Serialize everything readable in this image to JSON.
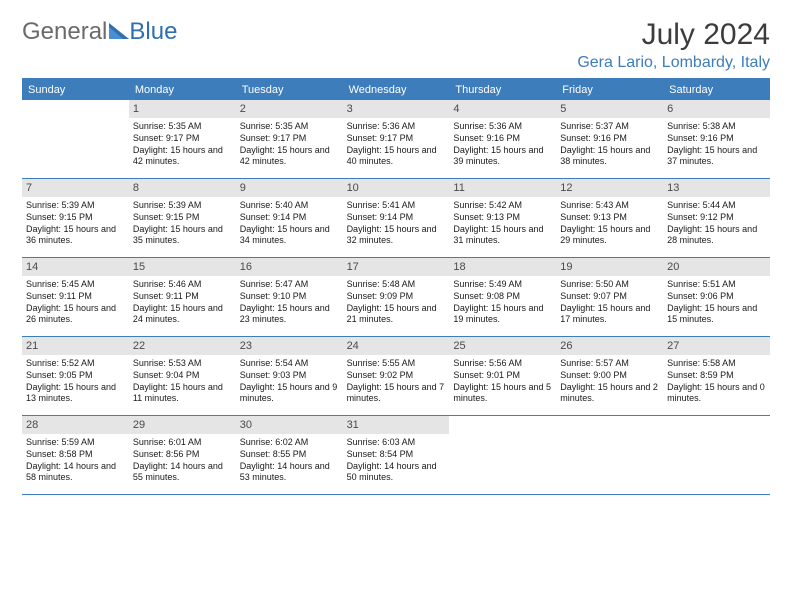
{
  "logo": {
    "text_part1": "General",
    "text_part2": "Blue"
  },
  "title": "July 2024",
  "location": "Gera Lario, Lombardy, Italy",
  "colors": {
    "accent": "#3d7dbb",
    "daynum_bg": "#e5e5e5",
    "text": "#1a1a1a",
    "logo_gray": "#6b6b6b"
  },
  "weekdays": [
    "Sunday",
    "Monday",
    "Tuesday",
    "Wednesday",
    "Thursday",
    "Friday",
    "Saturday"
  ],
  "weeks": [
    [
      {
        "day": "",
        "sunrise": "",
        "sunset": "",
        "daylight": ""
      },
      {
        "day": "1",
        "sunrise": "Sunrise: 5:35 AM",
        "sunset": "Sunset: 9:17 PM",
        "daylight": "Daylight: 15 hours and 42 minutes."
      },
      {
        "day": "2",
        "sunrise": "Sunrise: 5:35 AM",
        "sunset": "Sunset: 9:17 PM",
        "daylight": "Daylight: 15 hours and 42 minutes."
      },
      {
        "day": "3",
        "sunrise": "Sunrise: 5:36 AM",
        "sunset": "Sunset: 9:17 PM",
        "daylight": "Daylight: 15 hours and 40 minutes."
      },
      {
        "day": "4",
        "sunrise": "Sunrise: 5:36 AM",
        "sunset": "Sunset: 9:16 PM",
        "daylight": "Daylight: 15 hours and 39 minutes."
      },
      {
        "day": "5",
        "sunrise": "Sunrise: 5:37 AM",
        "sunset": "Sunset: 9:16 PM",
        "daylight": "Daylight: 15 hours and 38 minutes."
      },
      {
        "day": "6",
        "sunrise": "Sunrise: 5:38 AM",
        "sunset": "Sunset: 9:16 PM",
        "daylight": "Daylight: 15 hours and 37 minutes."
      }
    ],
    [
      {
        "day": "7",
        "sunrise": "Sunrise: 5:39 AM",
        "sunset": "Sunset: 9:15 PM",
        "daylight": "Daylight: 15 hours and 36 minutes."
      },
      {
        "day": "8",
        "sunrise": "Sunrise: 5:39 AM",
        "sunset": "Sunset: 9:15 PM",
        "daylight": "Daylight: 15 hours and 35 minutes."
      },
      {
        "day": "9",
        "sunrise": "Sunrise: 5:40 AM",
        "sunset": "Sunset: 9:14 PM",
        "daylight": "Daylight: 15 hours and 34 minutes."
      },
      {
        "day": "10",
        "sunrise": "Sunrise: 5:41 AM",
        "sunset": "Sunset: 9:14 PM",
        "daylight": "Daylight: 15 hours and 32 minutes."
      },
      {
        "day": "11",
        "sunrise": "Sunrise: 5:42 AM",
        "sunset": "Sunset: 9:13 PM",
        "daylight": "Daylight: 15 hours and 31 minutes."
      },
      {
        "day": "12",
        "sunrise": "Sunrise: 5:43 AM",
        "sunset": "Sunset: 9:13 PM",
        "daylight": "Daylight: 15 hours and 29 minutes."
      },
      {
        "day": "13",
        "sunrise": "Sunrise: 5:44 AM",
        "sunset": "Sunset: 9:12 PM",
        "daylight": "Daylight: 15 hours and 28 minutes."
      }
    ],
    [
      {
        "day": "14",
        "sunrise": "Sunrise: 5:45 AM",
        "sunset": "Sunset: 9:11 PM",
        "daylight": "Daylight: 15 hours and 26 minutes."
      },
      {
        "day": "15",
        "sunrise": "Sunrise: 5:46 AM",
        "sunset": "Sunset: 9:11 PM",
        "daylight": "Daylight: 15 hours and 24 minutes."
      },
      {
        "day": "16",
        "sunrise": "Sunrise: 5:47 AM",
        "sunset": "Sunset: 9:10 PM",
        "daylight": "Daylight: 15 hours and 23 minutes."
      },
      {
        "day": "17",
        "sunrise": "Sunrise: 5:48 AM",
        "sunset": "Sunset: 9:09 PM",
        "daylight": "Daylight: 15 hours and 21 minutes."
      },
      {
        "day": "18",
        "sunrise": "Sunrise: 5:49 AM",
        "sunset": "Sunset: 9:08 PM",
        "daylight": "Daylight: 15 hours and 19 minutes."
      },
      {
        "day": "19",
        "sunrise": "Sunrise: 5:50 AM",
        "sunset": "Sunset: 9:07 PM",
        "daylight": "Daylight: 15 hours and 17 minutes."
      },
      {
        "day": "20",
        "sunrise": "Sunrise: 5:51 AM",
        "sunset": "Sunset: 9:06 PM",
        "daylight": "Daylight: 15 hours and 15 minutes."
      }
    ],
    [
      {
        "day": "21",
        "sunrise": "Sunrise: 5:52 AM",
        "sunset": "Sunset: 9:05 PM",
        "daylight": "Daylight: 15 hours and 13 minutes."
      },
      {
        "day": "22",
        "sunrise": "Sunrise: 5:53 AM",
        "sunset": "Sunset: 9:04 PM",
        "daylight": "Daylight: 15 hours and 11 minutes."
      },
      {
        "day": "23",
        "sunrise": "Sunrise: 5:54 AM",
        "sunset": "Sunset: 9:03 PM",
        "daylight": "Daylight: 15 hours and 9 minutes."
      },
      {
        "day": "24",
        "sunrise": "Sunrise: 5:55 AM",
        "sunset": "Sunset: 9:02 PM",
        "daylight": "Daylight: 15 hours and 7 minutes."
      },
      {
        "day": "25",
        "sunrise": "Sunrise: 5:56 AM",
        "sunset": "Sunset: 9:01 PM",
        "daylight": "Daylight: 15 hours and 5 minutes."
      },
      {
        "day": "26",
        "sunrise": "Sunrise: 5:57 AM",
        "sunset": "Sunset: 9:00 PM",
        "daylight": "Daylight: 15 hours and 2 minutes."
      },
      {
        "day": "27",
        "sunrise": "Sunrise: 5:58 AM",
        "sunset": "Sunset: 8:59 PM",
        "daylight": "Daylight: 15 hours and 0 minutes."
      }
    ],
    [
      {
        "day": "28",
        "sunrise": "Sunrise: 5:59 AM",
        "sunset": "Sunset: 8:58 PM",
        "daylight": "Daylight: 14 hours and 58 minutes."
      },
      {
        "day": "29",
        "sunrise": "Sunrise: 6:01 AM",
        "sunset": "Sunset: 8:56 PM",
        "daylight": "Daylight: 14 hours and 55 minutes."
      },
      {
        "day": "30",
        "sunrise": "Sunrise: 6:02 AM",
        "sunset": "Sunset: 8:55 PM",
        "daylight": "Daylight: 14 hours and 53 minutes."
      },
      {
        "day": "31",
        "sunrise": "Sunrise: 6:03 AM",
        "sunset": "Sunset: 8:54 PM",
        "daylight": "Daylight: 14 hours and 50 minutes."
      },
      {
        "day": "",
        "sunrise": "",
        "sunset": "",
        "daylight": ""
      },
      {
        "day": "",
        "sunrise": "",
        "sunset": "",
        "daylight": ""
      },
      {
        "day": "",
        "sunrise": "",
        "sunset": "",
        "daylight": ""
      }
    ]
  ]
}
